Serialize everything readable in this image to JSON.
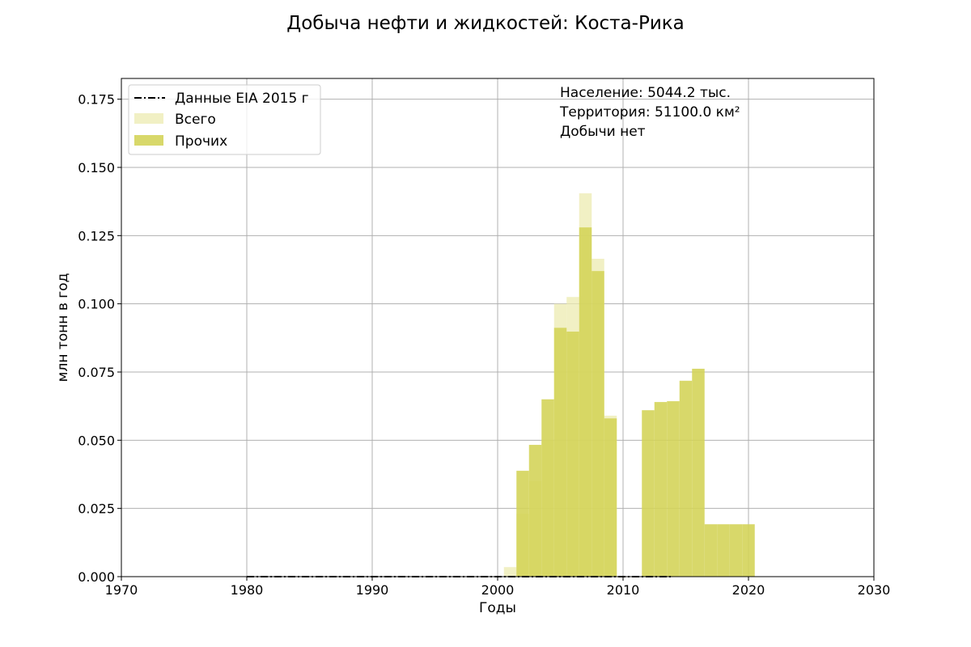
{
  "chart_data": {
    "type": "bar",
    "title": "Добыча нефти и жидкостей: Коста-Рика",
    "xlabel": "Годы",
    "ylabel": "млн тонн в год",
    "xlim": [
      1970,
      2030
    ],
    "ylim": [
      0,
      0.1826
    ],
    "xticks": [
      1970,
      1980,
      1990,
      2000,
      2010,
      2020,
      2030
    ],
    "xtick_labels": [
      "1970",
      "1980",
      "1990",
      "2000",
      "2010",
      "2020",
      "2030"
    ],
    "yticks": [
      0,
      0.025,
      0.05,
      0.075,
      0.1,
      0.125,
      0.15,
      0.175
    ],
    "ytick_labels": [
      "0.000",
      "0.025",
      "0.050",
      "0.075",
      "0.100",
      "0.125",
      "0.150",
      "0.175"
    ],
    "grid": true,
    "legend_position": "top-left",
    "series": [
      {
        "name": "Данные EIA 2015 г",
        "kind": "line",
        "style": "dash-dot",
        "color": "#000000",
        "x": [
          1980,
          1981,
          1982,
          1983,
          1984,
          1985,
          1986,
          1987,
          1988,
          1989,
          1990,
          1991,
          1992,
          1993,
          1994,
          1995,
          1996,
          1997,
          1998,
          1999,
          2000,
          2001,
          2002,
          2003,
          2004,
          2005,
          2006,
          2007,
          2008,
          2009,
          2010,
          2011,
          2012,
          2013,
          2014
        ],
        "values": [
          0,
          0,
          0,
          0,
          0,
          0,
          0,
          0,
          0,
          0,
          0,
          0,
          0,
          0,
          0,
          0,
          0,
          0,
          0,
          0,
          0,
          0,
          0,
          0,
          0,
          0,
          0,
          0,
          0,
          0,
          0,
          0,
          0,
          0,
          0
        ]
      },
      {
        "name": "Всего",
        "kind": "bar",
        "color": "#ecebb0",
        "opacity": 0.75,
        "x": [
          2001,
          2002,
          2003,
          2004,
          2005,
          2006,
          2007,
          2008,
          2009
        ],
        "values": [
          0.0035,
          0.023,
          0.035,
          0.05,
          0.1,
          0.1025,
          0.1405,
          0.1165,
          0.059
        ]
      },
      {
        "name": "Прочих",
        "kind": "bar",
        "color": "#d4d45a",
        "opacity": 0.9,
        "x": [
          2002,
          2003,
          2004,
          2005,
          2006,
          2007,
          2008,
          2009,
          2012,
          2013,
          2014,
          2015,
          2016,
          2017,
          2018,
          2019,
          2020
        ],
        "values": [
          0.0388,
          0.0483,
          0.065,
          0.0912,
          0.0898,
          0.128,
          0.112,
          0.058,
          0.061,
          0.064,
          0.0643,
          0.0718,
          0.0762,
          0.0192,
          0.0192,
          0.0192,
          0.0192
        ]
      }
    ],
    "annotations": [
      "Население: 5044.2 тыс.",
      "Территория: 51100.0 км²",
      "Добычи нет"
    ]
  }
}
